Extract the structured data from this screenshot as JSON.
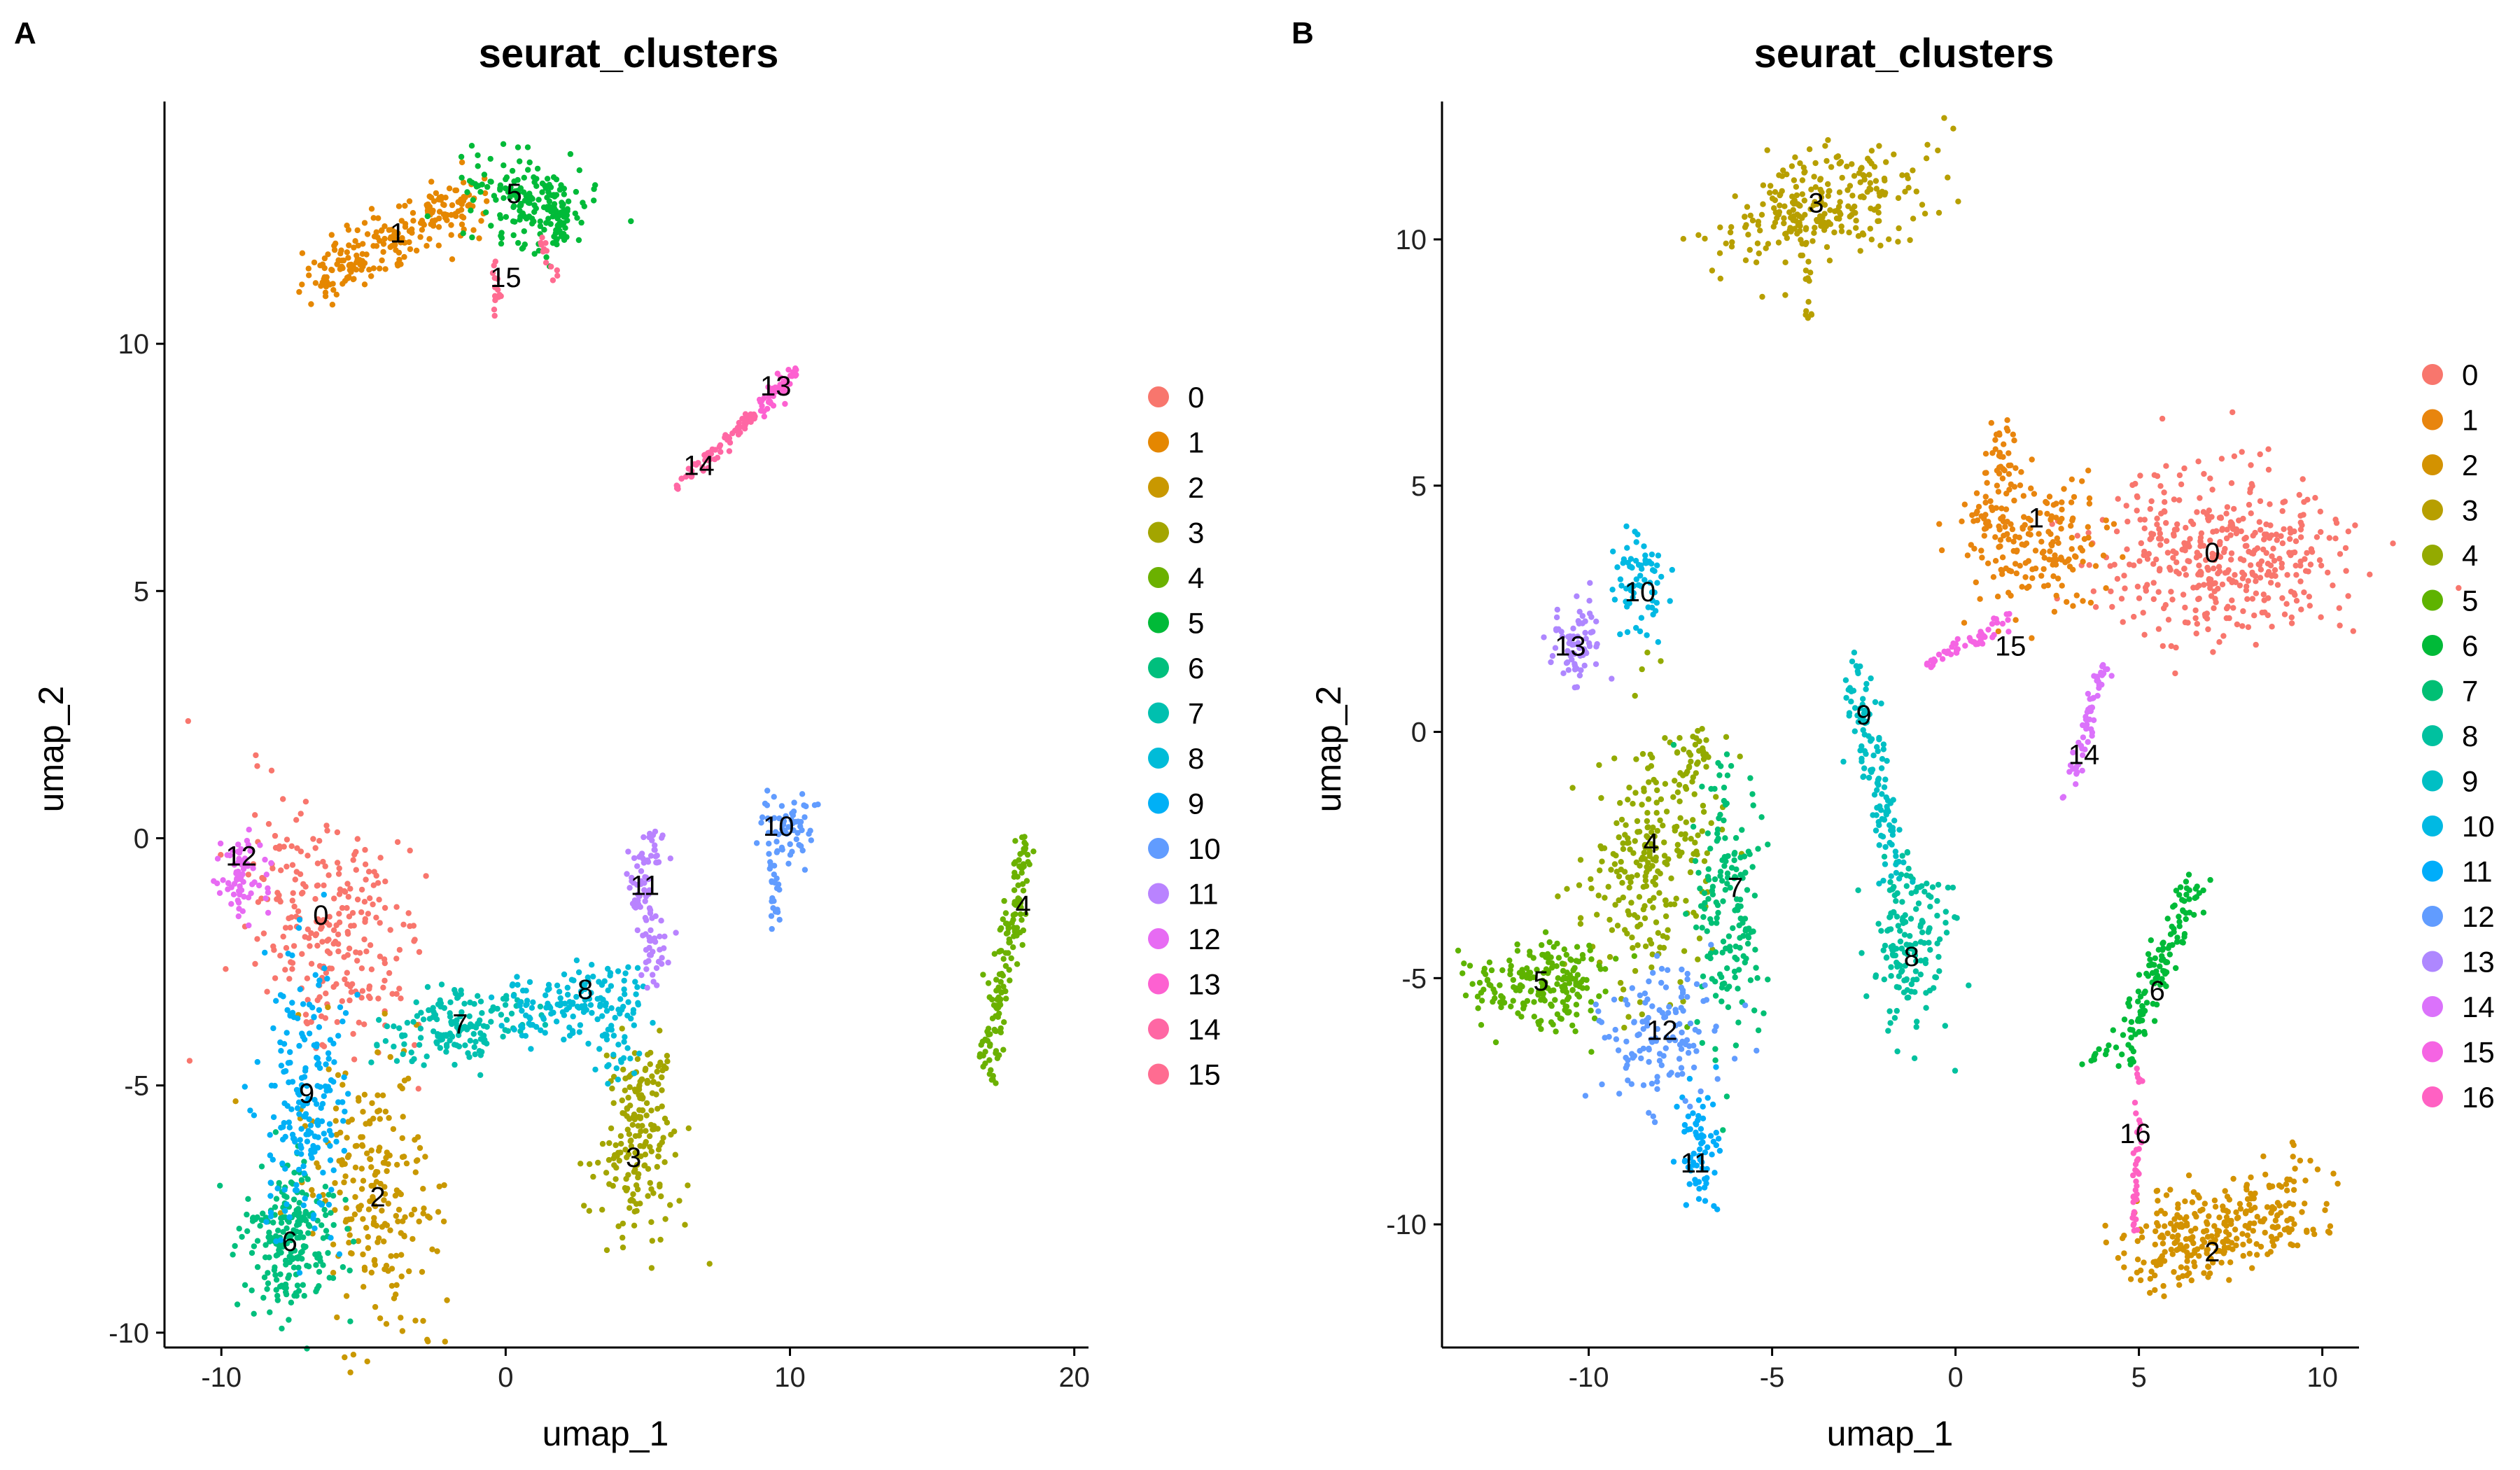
{
  "colors": {
    "0": "#F8766D",
    "1": "#E58700",
    "2": "#C99800",
    "3": "#A3A500",
    "4": "#6BB100",
    "5": "#00BA38",
    "6": "#00BF7D",
    "7": "#00C0AF",
    "8": "#00BCD8",
    "9": "#00B0F6",
    "10": "#619CFF",
    "11": "#B983FF",
    "12": "#E76BF3",
    "13": "#FD61D1",
    "14": "#FF67A4",
    "15": "#FF6C91"
  },
  "chart_data": [
    {
      "panel_letter": "A",
      "type": "scatter",
      "title": "seurat_clusters",
      "xlabel": "umap_1",
      "ylabel": "umap_2",
      "xlim": [
        -12,
        20.5
      ],
      "ylim": [
        -10.3,
        14.9
      ],
      "xticks": [
        -10,
        0,
        10,
        20
      ],
      "xtick_labels": [
        "-10",
        "0",
        "10",
        "20"
      ],
      "yticks": [
        -10,
        -5,
        0,
        5,
        10
      ],
      "ytick_labels": [
        "-10",
        "-5",
        "0",
        "5",
        "10"
      ],
      "legend": {
        "position": "right",
        "labels": [
          "0",
          "1",
          "2",
          "3",
          "4",
          "5",
          "6",
          "7",
          "8",
          "9",
          "10",
          "11",
          "12",
          "13",
          "14",
          "15"
        ]
      },
      "clusters": [
        {
          "id": "0",
          "label": "0",
          "color": "#F8766D",
          "center": [
            -6.5,
            -1.6
          ],
          "label_pos": [
            -6.5,
            -1.6
          ]
        },
        {
          "id": "1",
          "label": "1",
          "color": "#E58700",
          "center": [
            -4.0,
            12.2
          ],
          "label_pos": [
            -3.8,
            12.2
          ]
        },
        {
          "id": "2",
          "label": "2",
          "color": "#C99800",
          "center": [
            -4.5,
            -7.2
          ],
          "label_pos": [
            -4.5,
            -7.3
          ]
        },
        {
          "id": "3",
          "label": "3",
          "color": "#A3A500",
          "center": [
            4.5,
            -6.3
          ],
          "label_pos": [
            4.5,
            -6.5
          ]
        },
        {
          "id": "4",
          "label": "4",
          "color": "#6BB100",
          "center": [
            18.0,
            -2.5
          ],
          "label_pos": [
            18.2,
            -1.4
          ]
        },
        {
          "id": "5",
          "label": "5",
          "color": "#00BA38",
          "center": [
            0.5,
            12.9
          ],
          "label_pos": [
            0.3,
            13.0
          ]
        },
        {
          "id": "6",
          "label": "6",
          "color": "#00BF7D",
          "center": [
            -7.5,
            -8.0
          ],
          "label_pos": [
            -7.6,
            -8.2
          ]
        },
        {
          "id": "7",
          "label": "7",
          "color": "#00C0AF",
          "center": [
            -1.5,
            -3.8
          ],
          "label_pos": [
            -1.6,
            -3.8
          ]
        },
        {
          "id": "8",
          "label": "8",
          "color": "#00BCD8",
          "center": [
            2.5,
            -3.4
          ],
          "label_pos": [
            2.8,
            -3.1
          ]
        },
        {
          "id": "9",
          "label": "9",
          "color": "#00B0F6",
          "center": [
            -7.2,
            -5.2
          ],
          "label_pos": [
            -7.0,
            -5.2
          ]
        },
        {
          "id": "10",
          "label": "10",
          "color": "#619CFF",
          "center": [
            9.8,
            -0.4
          ],
          "label_pos": [
            9.6,
            0.2
          ]
        },
        {
          "id": "11",
          "label": "11",
          "color": "#B983FF",
          "center": [
            5.0,
            -1.5
          ],
          "label_pos": [
            4.9,
            -1.0
          ]
        },
        {
          "id": "12",
          "label": "12",
          "color": "#E76BF3",
          "center": [
            -9.3,
            -0.7
          ],
          "label_pos": [
            -9.3,
            -0.4
          ]
        },
        {
          "id": "13",
          "label": "13",
          "color": "#FD61D1",
          "center": [
            9.5,
            9.0
          ],
          "label_pos": [
            9.5,
            9.1
          ]
        },
        {
          "id": "14",
          "label": "14",
          "color": "#FF67A4",
          "center": [
            6.8,
            7.6
          ],
          "label_pos": [
            6.8,
            7.5
          ]
        },
        {
          "id": "15",
          "label": "15",
          "color": "#FF6C91",
          "center": [
            -0.2,
            11.2
          ],
          "label_pos": [
            0.0,
            11.3
          ]
        }
      ]
    },
    {
      "panel_letter": "B",
      "type": "scatter",
      "title": "seurat_clusters",
      "xlabel": "umap_1",
      "ylabel": "umap_2",
      "xlim": [
        -14,
        11
      ],
      "ylim": [
        -12.5,
        12.8
      ],
      "xticks": [
        -10,
        -5,
        0,
        5,
        10
      ],
      "xtick_labels": [
        "-10",
        "-5",
        "0",
        "5",
        "10"
      ],
      "yticks": [
        -10,
        -5,
        0,
        5,
        10
      ],
      "ytick_labels": [
        "-10",
        "-5",
        "0",
        "5",
        "10"
      ],
      "legend": {
        "position": "right",
        "labels": [
          "0",
          "1",
          "2",
          "3",
          "4",
          "5",
          "6",
          "7",
          "8",
          "9",
          "10",
          "11",
          "12",
          "13",
          "14",
          "15",
          "16"
        ]
      },
      "clusters": [
        {
          "id": "0",
          "label": "0",
          "color": "#F8766D",
          "center": [
            7.3,
            3.5
          ],
          "label_pos": [
            7.0,
            3.6
          ]
        },
        {
          "id": "1",
          "label": "1",
          "color": "#E8850E",
          "center": [
            2.0,
            4.0
          ],
          "label_pos": [
            2.2,
            4.3
          ]
        },
        {
          "id": "2",
          "label": "2",
          "color": "#D39200",
          "center": [
            6.5,
            -10.5
          ],
          "label_pos": [
            7.0,
            -10.6
          ]
        },
        {
          "id": "3",
          "label": "3",
          "color": "#B79F00",
          "center": [
            -3.7,
            10.7
          ],
          "label_pos": [
            -3.8,
            10.7
          ]
        },
        {
          "id": "4",
          "label": "4",
          "color": "#93AA00",
          "center": [
            -8.5,
            -2.3
          ],
          "label_pos": [
            -8.3,
            -2.3
          ]
        },
        {
          "id": "5",
          "label": "5",
          "color": "#5EB300",
          "center": [
            -11.3,
            -5.0
          ],
          "label_pos": [
            -11.3,
            -5.1
          ]
        },
        {
          "id": "6",
          "label": "6",
          "color": "#00BA38",
          "center": [
            5.5,
            -5.3
          ],
          "label_pos": [
            5.5,
            -5.3
          ]
        },
        {
          "id": "7",
          "label": "7",
          "color": "#00BF74",
          "center": [
            -6.3,
            -3.2
          ],
          "label_pos": [
            -6.0,
            -3.2
          ]
        },
        {
          "id": "8",
          "label": "8",
          "color": "#00C19F",
          "center": [
            -1.2,
            -4.6
          ],
          "label_pos": [
            -1.2,
            -4.6
          ]
        },
        {
          "id": "9",
          "label": "9",
          "color": "#00BFC4",
          "center": [
            -2.5,
            0.2
          ],
          "label_pos": [
            -2.5,
            0.3
          ]
        },
        {
          "id": "10",
          "label": "10",
          "color": "#00B9E3",
          "center": [
            -8.6,
            2.9
          ],
          "label_pos": [
            -8.6,
            2.8
          ]
        },
        {
          "id": "11",
          "label": "11",
          "color": "#00ADFA",
          "center": [
            -7.0,
            -8.7
          ],
          "label_pos": [
            -7.1,
            -8.8
          ]
        },
        {
          "id": "12",
          "label": "12",
          "color": "#619CFF",
          "center": [
            -8.0,
            -6.0
          ],
          "label_pos": [
            -8.0,
            -6.1
          ]
        },
        {
          "id": "13",
          "label": "13",
          "color": "#AE87FF",
          "center": [
            -10.3,
            1.8
          ],
          "label_pos": [
            -10.5,
            1.7
          ]
        },
        {
          "id": "14",
          "label": "14",
          "color": "#DB72FB",
          "center": [
            3.5,
            -0.8
          ],
          "label_pos": [
            3.5,
            -0.5
          ]
        },
        {
          "id": "15",
          "label": "15",
          "color": "#F564E3",
          "center": [
            1.0,
            1.5
          ],
          "label_pos": [
            1.5,
            1.7
          ]
        },
        {
          "id": "16",
          "label": "16",
          "color": "#FF61C3",
          "center": [
            5.0,
            -8.0
          ],
          "label_pos": [
            4.9,
            -8.2
          ]
        }
      ]
    }
  ]
}
